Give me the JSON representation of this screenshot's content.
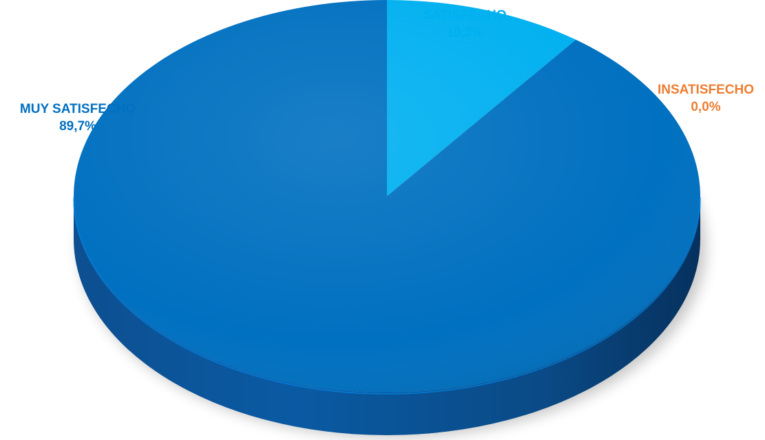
{
  "chart_data": {
    "type": "pie",
    "title": "",
    "slices": [
      {
        "label": "MUY SATISFECHO",
        "value": 89.7,
        "value_label": "89,7%",
        "color": "#0070C0"
      },
      {
        "label": "SATISFECHO",
        "value": 10.3,
        "value_label": "10,3%",
        "color": "#00B0F0"
      },
      {
        "label": "INSATISFECHO",
        "value": 0.0,
        "value_label": "0,0%",
        "color": "#ED7D31"
      }
    ],
    "legend": "none",
    "style": "3d"
  }
}
